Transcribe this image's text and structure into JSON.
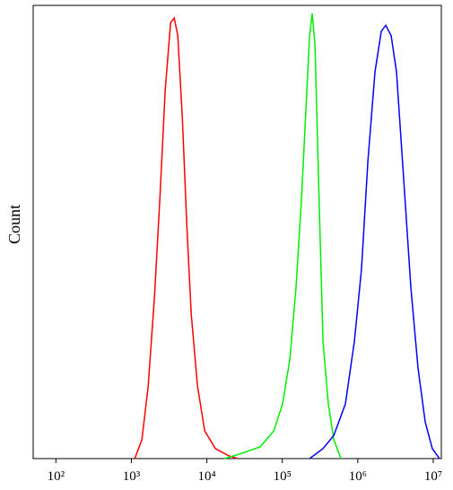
{
  "chart_data": {
    "type": "line",
    "y_label": "Count",
    "xscale": "log",
    "xlim": [
      50,
      12800000
    ],
    "ylim": [
      0,
      100
    ],
    "xticks": [
      {
        "value": 100,
        "label": "10²"
      },
      {
        "value": 1000,
        "label": "10³"
      },
      {
        "value": 10000,
        "label": "10⁴"
      },
      {
        "value": 100000,
        "label": "10⁵"
      },
      {
        "value": 1000000,
        "label": "10⁶"
      },
      {
        "value": 10000000,
        "label": "10⁷"
      }
    ],
    "series": [
      {
        "color": "#ff0000",
        "x": [
          1109,
          1380,
          1670,
          2025,
          2390,
          2810,
          3310,
          3700,
          4120,
          4730,
          5420,
          6210,
          7520,
          9370,
          13000,
          19600,
          25700
        ],
        "values": [
          0,
          4.2,
          16,
          35.8,
          57.6,
          81.4,
          96.2,
          97.2,
          93.3,
          75.4,
          51.7,
          31.9,
          16,
          6.1,
          2.2,
          0.6,
          0
        ]
      },
      {
        "color": "#00ee00",
        "x": [
          17100,
          29500,
          51000,
          76900,
          101000,
          126000,
          152000,
          180000,
          206000,
          230000,
          249000,
          271000,
          302000,
          346000,
          407000,
          481000,
          598000
        ],
        "values": [
          0,
          1.2,
          2.6,
          6.1,
          12.1,
          22,
          37.8,
          57.6,
          77.4,
          93.3,
          98.2,
          91.3,
          61.6,
          25.9,
          12.1,
          4.2,
          0
        ]
      },
      {
        "color": "#0000ff",
        "x": [
          230000,
          346000,
          481000,
          686000,
          902000,
          1120000,
          1360000,
          1690000,
          2050000,
          2350000,
          2770000,
          3260000,
          4060000,
          5050000,
          6280000,
          7820000,
          9720000,
          12100000
        ],
        "values": [
          0,
          2.2,
          5.1,
          12.1,
          25.9,
          41.8,
          65.5,
          85.3,
          94.3,
          95.6,
          93.3,
          85.3,
          61.6,
          37.8,
          20,
          8.1,
          2.2,
          0
        ]
      }
    ]
  }
}
